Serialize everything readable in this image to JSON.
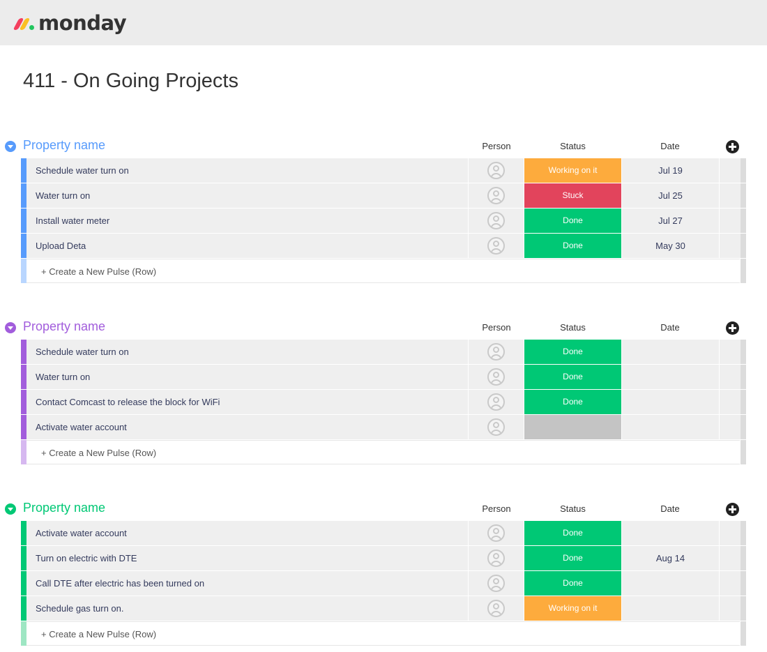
{
  "app": {
    "logo_text": "monday"
  },
  "board": {
    "title": "411 - On Going Projects"
  },
  "columns": {
    "person": "Person",
    "status": "Status",
    "date": "Date"
  },
  "create_row_label": "+ Create a New Pulse (Row)",
  "status_colors": {
    "Working on it": "#fdab3d",
    "Stuck": "#e2445c",
    "Done": "#00c875",
    "": "#c4c4c4"
  },
  "groups": [
    {
      "title": "Property name",
      "color": "#579bfc",
      "light_color": "#b9d6ff",
      "rows": [
        {
          "name": "Schedule water turn on",
          "status": "Working on it",
          "date": "Jul 19"
        },
        {
          "name": "Water turn on",
          "status": "Stuck",
          "date": "Jul 25"
        },
        {
          "name": "Install water meter",
          "status": "Done",
          "date": "Jul 27"
        },
        {
          "name": "Upload Deta",
          "status": "Done",
          "date": "May 30"
        }
      ]
    },
    {
      "title": "Property name",
      "color": "#a25ddc",
      "light_color": "#d6b8f0",
      "rows": [
        {
          "name": "Schedule water turn on",
          "status": "Done",
          "date": ""
        },
        {
          "name": "Water turn on",
          "status": "Done",
          "date": ""
        },
        {
          "name": "Contact Comcast to release the block for WiFi",
          "status": "Done",
          "date": ""
        },
        {
          "name": "Activate water account",
          "status": "",
          "date": ""
        }
      ]
    },
    {
      "title": "Property name",
      "color": "#00c875",
      "light_color": "#9ee6c3",
      "rows": [
        {
          "name": "Activate water account",
          "status": "Done",
          "date": ""
        },
        {
          "name": "Turn on electric with DTE",
          "status": "Done",
          "date": "Aug 14"
        },
        {
          "name": "Call DTE after electric has been turned on",
          "status": "Done",
          "date": ""
        },
        {
          "name": "Schedule gas turn on.",
          "status": "Working on it",
          "date": ""
        }
      ]
    }
  ]
}
